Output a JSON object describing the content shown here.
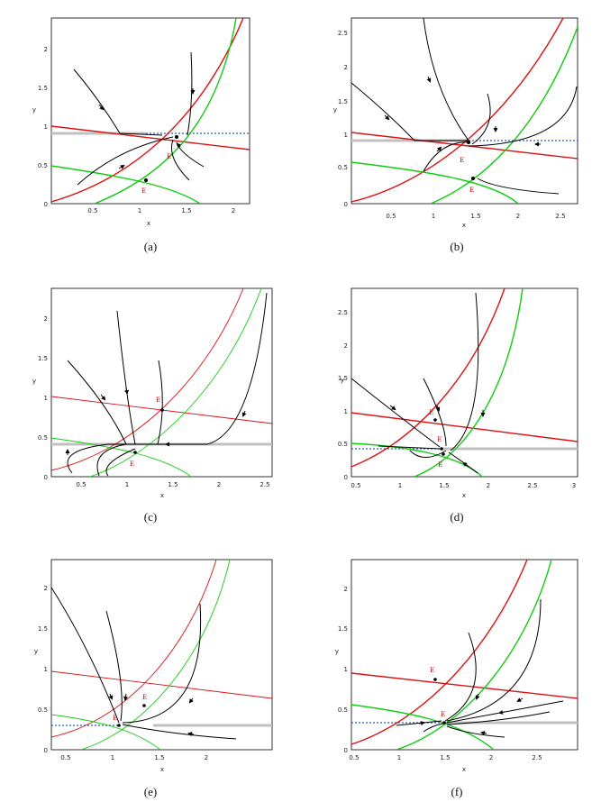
{
  "figure": {
    "panels": [
      {
        "id": "a",
        "caption": "(a)",
        "xlabel": "x",
        "ylabel": "y",
        "xticks": [
          "0.5",
          "1",
          "1.5",
          "2"
        ],
        "yticks": [
          "0",
          "0.5",
          "1",
          "1.5",
          "2"
        ],
        "points": [
          "E",
          "E"
        ]
      },
      {
        "id": "b",
        "caption": "(b)",
        "xlabel": "x",
        "ylabel": "y",
        "xticks": [
          "0.5",
          "1",
          "1.5",
          "2",
          "2.5"
        ],
        "yticks": [
          "0",
          "0.5",
          "1",
          "1.5",
          "2",
          "2.5"
        ],
        "points": [
          "E",
          "E"
        ]
      },
      {
        "id": "c",
        "caption": "(c)",
        "xlabel": "x",
        "ylabel": "y",
        "xticks": [
          "0.5",
          "1",
          "1.5",
          "2",
          "2.5"
        ],
        "yticks": [
          "0",
          "0.5",
          "1",
          "1.5",
          "2"
        ],
        "points": [
          "E",
          "E"
        ]
      },
      {
        "id": "d",
        "caption": "(d)",
        "xlabel": "x",
        "ylabel": "y",
        "xticks": [
          "0.5",
          "1",
          "1.5",
          "2",
          "2.5",
          "3"
        ],
        "yticks": [
          "0",
          "0.5",
          "1",
          "1.5",
          "2",
          "2.5"
        ],
        "points": [
          "E",
          "E",
          "E"
        ]
      },
      {
        "id": "e",
        "caption": "(e)",
        "xlabel": "x",
        "ylabel": "y",
        "xticks": [
          "0.5",
          "1",
          "1.5",
          "2"
        ],
        "yticks": [
          "0",
          "0.5",
          "1",
          "1.5",
          "2"
        ],
        "points": [
          "E",
          "E"
        ]
      },
      {
        "id": "f",
        "caption": "(f)",
        "xlabel": "x",
        "ylabel": "y",
        "xticks": [
          "0.5",
          "1",
          "1.5",
          "2",
          "2.5"
        ],
        "yticks": [
          "0",
          "0.5",
          "1",
          "1.5",
          "2"
        ],
        "points": [
          "E",
          "E"
        ]
      }
    ],
    "colors": {
      "red": "#dd1111",
      "green": "#11cc11",
      "black": "#000000",
      "gray": "#c0c0c0",
      "blue": "#1f5fbf"
    }
  }
}
